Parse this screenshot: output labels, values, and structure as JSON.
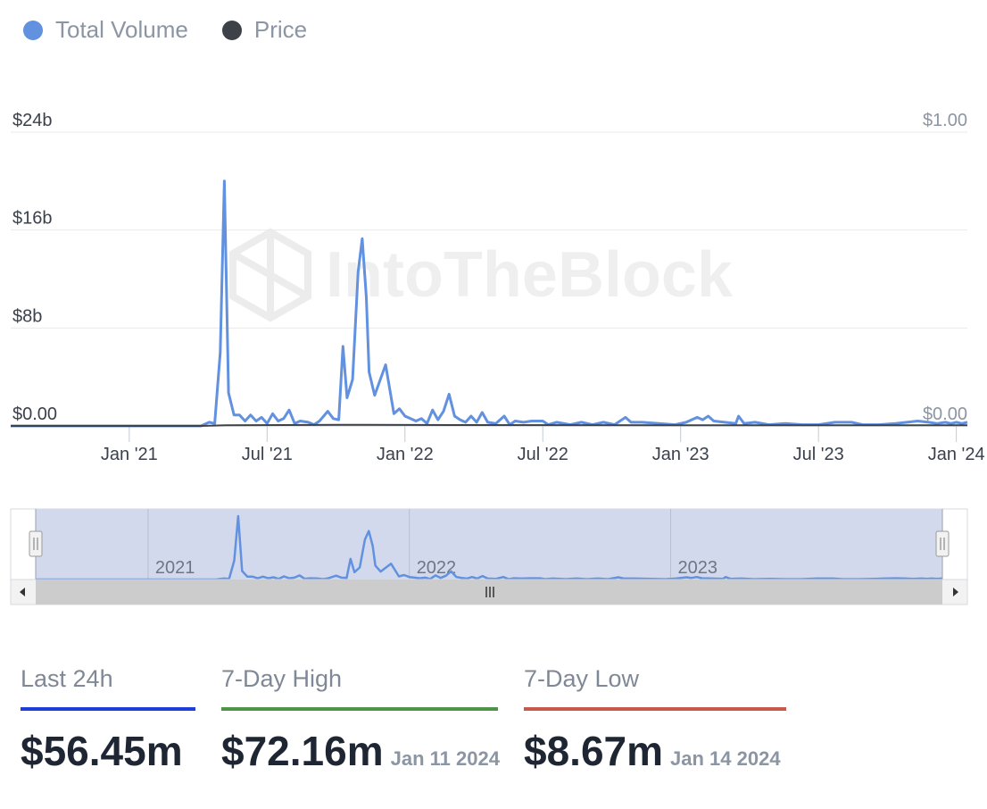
{
  "legend": {
    "volume_label": "Total Volume",
    "price_label": "Price"
  },
  "colors": {
    "volume": "#6191df",
    "price": "#3d4148",
    "last24": "#1d3fd8",
    "high": "#4d9446",
    "low": "#c9584a",
    "grid": "#e6e9ee",
    "navigator_fill": "#d3d9ec"
  },
  "watermark": "IntoTheBlock",
  "chart_data": {
    "type": "line",
    "title": "",
    "left_axis": {
      "ticks": [
        "$0.00",
        "$8b",
        "$16b",
        "$24b"
      ],
      "values": [
        0,
        8,
        16,
        24
      ],
      "unit": "billions USD"
    },
    "right_axis": {
      "ticks": [
        "$0.00",
        "$1.00"
      ],
      "values": [
        0,
        1
      ]
    },
    "x_ticks": [
      {
        "label": "Jan '21",
        "t": 2021.0
      },
      {
        "label": "Jul '21",
        "t": 2021.5
      },
      {
        "label": "Jan '22",
        "t": 2022.0
      },
      {
        "label": "Jul '22",
        "t": 2022.5
      },
      {
        "label": "Jan '23",
        "t": 2023.0
      },
      {
        "label": "Jul '23",
        "t": 2023.5
      },
      {
        "label": "Jan '24",
        "t": 2024.0
      }
    ],
    "x_range": [
      2020.57,
      2024.04
    ],
    "series": [
      {
        "name": "Total Volume",
        "axis": "left",
        "points": [
          [
            2020.57,
            0
          ],
          [
            2021.26,
            0
          ],
          [
            2021.29,
            0.3
          ],
          [
            2021.31,
            0.2
          ],
          [
            2021.33,
            6.0
          ],
          [
            2021.345,
            20.0
          ],
          [
            2021.36,
            2.7
          ],
          [
            2021.38,
            0.9
          ],
          [
            2021.4,
            0.9
          ],
          [
            2021.42,
            0.4
          ],
          [
            2021.44,
            0.9
          ],
          [
            2021.46,
            0.4
          ],
          [
            2021.48,
            0.7
          ],
          [
            2021.5,
            0.2
          ],
          [
            2021.52,
            1.0
          ],
          [
            2021.54,
            0.4
          ],
          [
            2021.56,
            0.6
          ],
          [
            2021.58,
            1.3
          ],
          [
            2021.6,
            0.2
          ],
          [
            2021.62,
            0.4
          ],
          [
            2021.65,
            0.3
          ],
          [
            2021.67,
            0.1
          ],
          [
            2021.69,
            0.4
          ],
          [
            2021.72,
            1.2
          ],
          [
            2021.74,
            0.6
          ],
          [
            2021.76,
            0.5
          ],
          [
            2021.775,
            6.5
          ],
          [
            2021.79,
            2.3
          ],
          [
            2021.81,
            3.8
          ],
          [
            2021.83,
            12.6
          ],
          [
            2021.845,
            15.3
          ],
          [
            2021.86,
            10.5
          ],
          [
            2021.87,
            4.4
          ],
          [
            2021.89,
            2.5
          ],
          [
            2021.93,
            5.0
          ],
          [
            2021.96,
            1.0
          ],
          [
            2021.98,
            1.4
          ],
          [
            2022.0,
            0.8
          ],
          [
            2022.02,
            0.6
          ],
          [
            2022.04,
            0.4
          ],
          [
            2022.06,
            0.6
          ],
          [
            2022.08,
            0.2
          ],
          [
            2022.1,
            1.3
          ],
          [
            2022.12,
            0.5
          ],
          [
            2022.14,
            1.2
          ],
          [
            2022.16,
            2.6
          ],
          [
            2022.18,
            0.8
          ],
          [
            2022.2,
            0.5
          ],
          [
            2022.22,
            0.3
          ],
          [
            2022.24,
            0.8
          ],
          [
            2022.26,
            0.3
          ],
          [
            2022.28,
            1.1
          ],
          [
            2022.3,
            0.3
          ],
          [
            2022.33,
            0.2
          ],
          [
            2022.36,
            0.8
          ],
          [
            2022.38,
            0.1
          ],
          [
            2022.4,
            0.4
          ],
          [
            2022.43,
            0.3
          ],
          [
            2022.46,
            0.4
          ],
          [
            2022.5,
            0.4
          ],
          [
            2022.52,
            0.1
          ],
          [
            2022.55,
            0.3
          ],
          [
            2022.6,
            0.1
          ],
          [
            2022.64,
            0.3
          ],
          [
            2022.68,
            0.1
          ],
          [
            2022.72,
            0.3
          ],
          [
            2022.76,
            0.1
          ],
          [
            2022.8,
            0.7
          ],
          [
            2022.82,
            0.3
          ],
          [
            2022.86,
            0.3
          ],
          [
            2022.92,
            0.2
          ],
          [
            2022.98,
            0.1
          ],
          [
            2023.02,
            0.3
          ],
          [
            2023.06,
            0.7
          ],
          [
            2023.08,
            0.5
          ],
          [
            2023.1,
            0.8
          ],
          [
            2023.12,
            0.4
          ],
          [
            2023.16,
            0.3
          ],
          [
            2023.2,
            0.2
          ],
          [
            2023.21,
            0.8
          ],
          [
            2023.23,
            0.2
          ],
          [
            2023.27,
            0.3
          ],
          [
            2023.32,
            0.1
          ],
          [
            2023.38,
            0.2
          ],
          [
            2023.44,
            0.1
          ],
          [
            2023.5,
            0.1
          ],
          [
            2023.56,
            0.3
          ],
          [
            2023.62,
            0.3
          ],
          [
            2023.66,
            0.1
          ],
          [
            2023.72,
            0.1
          ],
          [
            2023.78,
            0.2
          ],
          [
            2023.82,
            0.3
          ],
          [
            2023.86,
            0.4
          ],
          [
            2023.9,
            0.3
          ],
          [
            2023.93,
            0.2
          ],
          [
            2023.96,
            0.3
          ],
          [
            2023.98,
            0.2
          ],
          [
            2024.0,
            0.3
          ],
          [
            2024.02,
            0.2
          ],
          [
            2024.04,
            0.3
          ]
        ]
      },
      {
        "name": "Price",
        "axis": "right",
        "points": [
          [
            2020.57,
            0
          ],
          [
            2021.26,
            0
          ],
          [
            2021.35,
            0.002
          ],
          [
            2021.85,
            0.004
          ],
          [
            2022.2,
            0.003
          ],
          [
            2023.0,
            0.002
          ],
          [
            2023.8,
            0.002
          ],
          [
            2024.04,
            0.002
          ]
        ]
      }
    ]
  },
  "navigator": {
    "year_labels": [
      {
        "label": "2021",
        "t": 2021.0
      },
      {
        "label": "2022",
        "t": 2022.0
      },
      {
        "label": "2023",
        "t": 2023.0
      }
    ],
    "range": [
      2020.57,
      2024.04
    ]
  },
  "stats": {
    "last24": {
      "label": "Last 24h",
      "value": "$56.45m"
    },
    "high": {
      "label": "7-Day High",
      "value": "$72.16m",
      "date": "Jan 11 2024"
    },
    "low": {
      "label": "7-Day Low",
      "value": "$8.67m",
      "date": "Jan 14 2024"
    }
  }
}
